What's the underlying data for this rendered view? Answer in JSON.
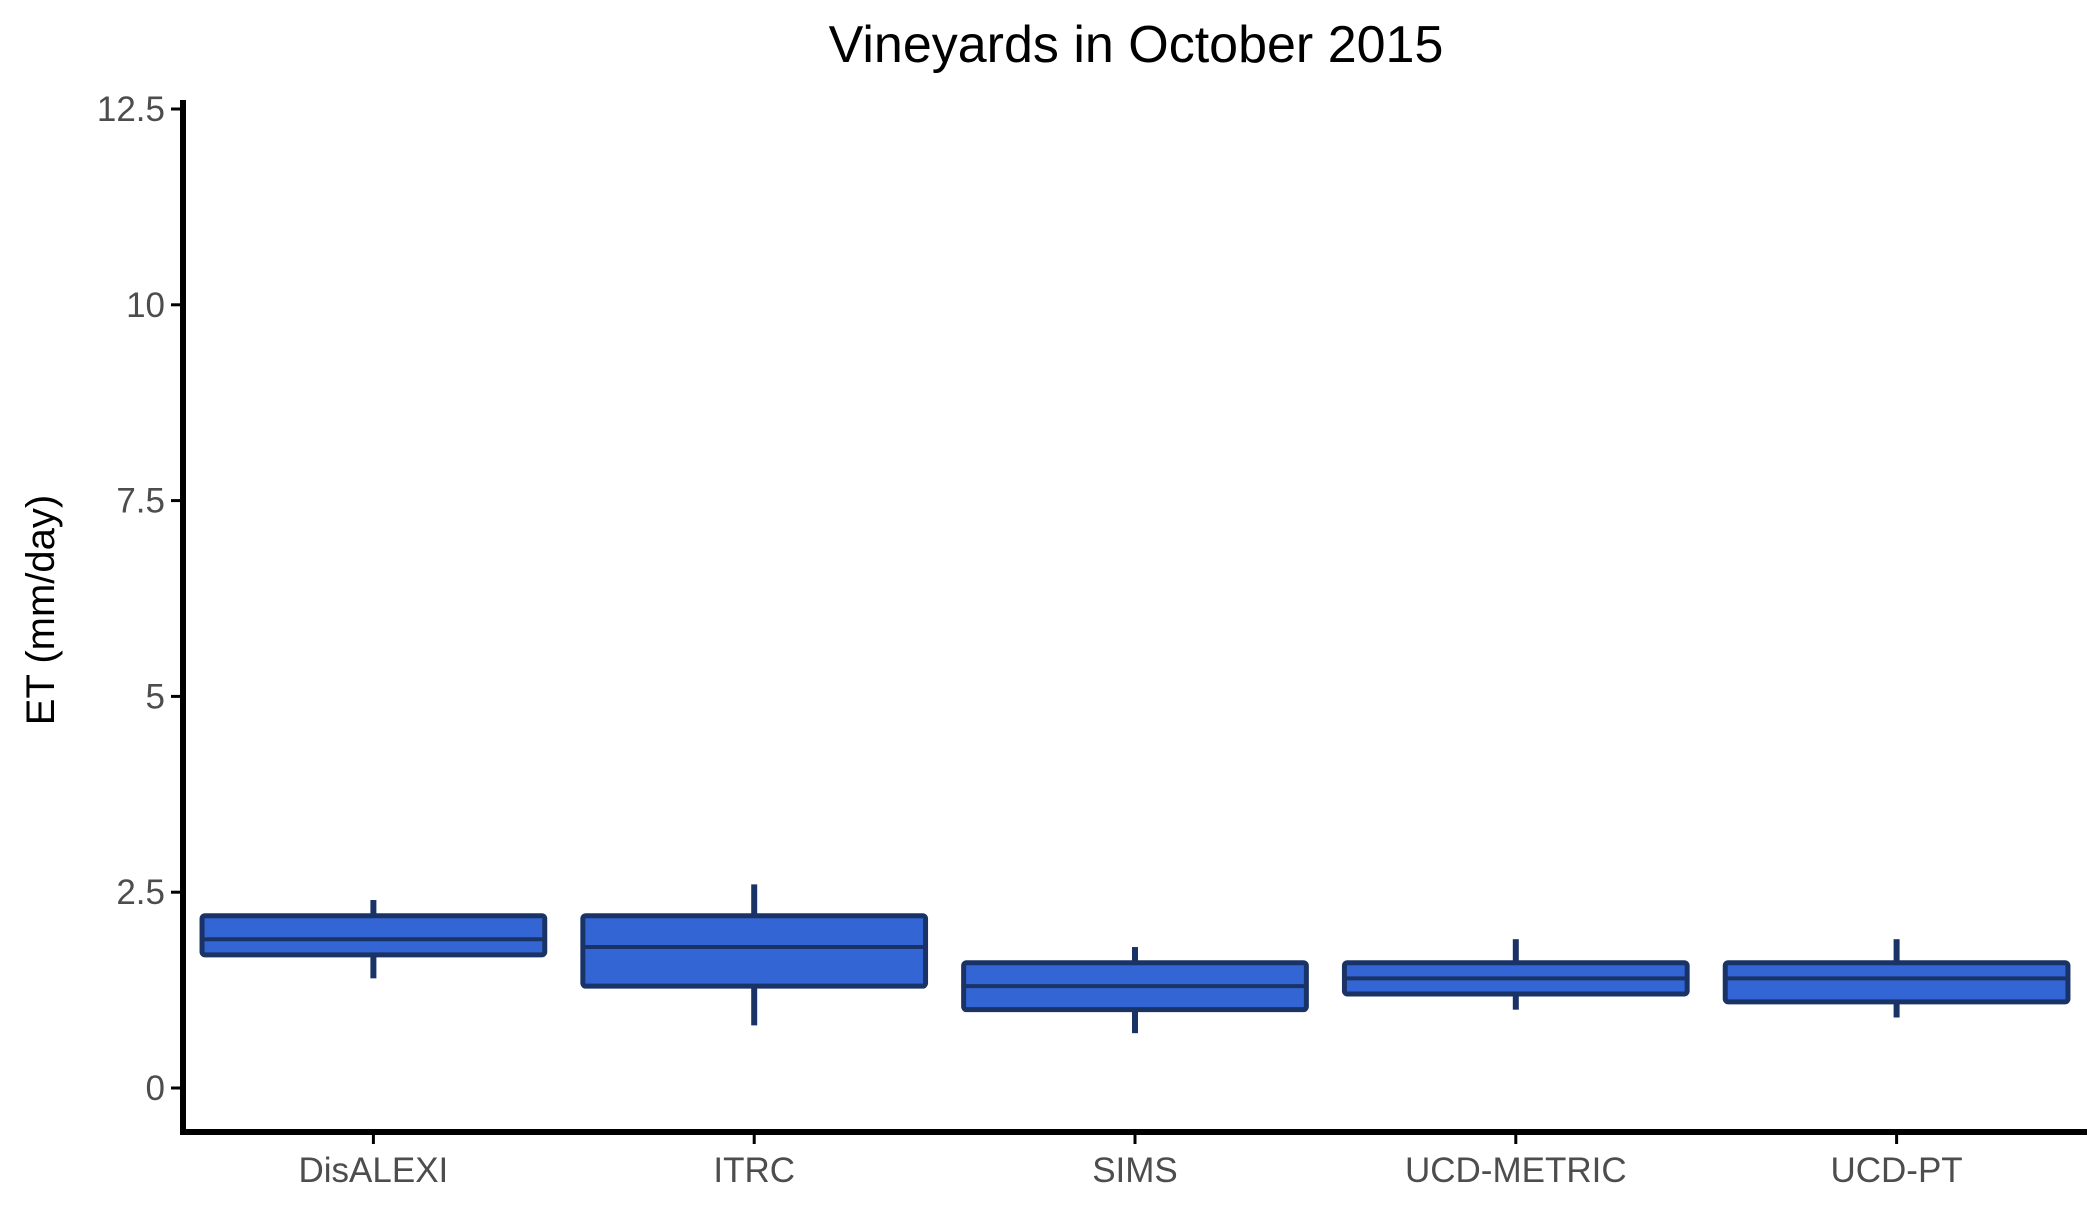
{
  "chart_data": {
    "type": "box",
    "title": "Vineyards in October 2015",
    "xlabel": "",
    "ylabel": "ET (mm/day)",
    "ylim": [
      -0.6,
      12.6
    ],
    "yticks": [
      0,
      2.5,
      5,
      7.5,
      10,
      12.5
    ],
    "ytick_labels": [
      "0",
      "2.5",
      "5",
      "7.5",
      "10",
      "12.5"
    ],
    "categories": [
      "DisALEXI",
      "ITRC",
      "SIMS",
      "UCD-METRIC",
      "UCD-PT"
    ],
    "boxes": [
      {
        "category": "DisALEXI",
        "whisker_low": 1.4,
        "q1": 1.7,
        "median": 1.9,
        "q3": 2.2,
        "whisker_high": 2.4
      },
      {
        "category": "ITRC",
        "whisker_low": 0.8,
        "q1": 1.3,
        "median": 1.8,
        "q3": 2.2,
        "whisker_high": 2.6
      },
      {
        "category": "SIMS",
        "whisker_low": 0.7,
        "q1": 1.0,
        "median": 1.3,
        "q3": 1.6,
        "whisker_high": 1.8
      },
      {
        "category": "UCD-METRIC",
        "whisker_low": 1.0,
        "q1": 1.2,
        "median": 1.4,
        "q3": 1.6,
        "whisker_high": 1.9
      },
      {
        "category": "UCD-PT",
        "whisker_low": 0.9,
        "q1": 1.1,
        "median": 1.4,
        "q3": 1.6,
        "whisker_high": 1.9
      }
    ],
    "grid": false,
    "legend": "none",
    "colors": {
      "box_fill": "#3366d4",
      "box_outline": "#1a3366",
      "axis": "#000000"
    }
  }
}
